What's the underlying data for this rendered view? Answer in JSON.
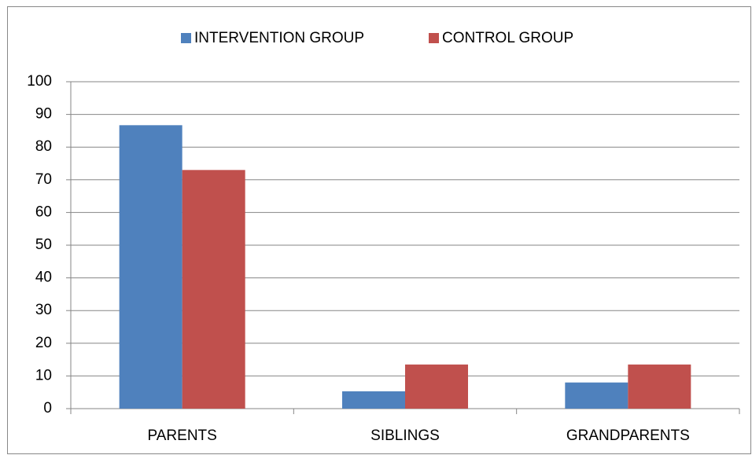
{
  "chart_data": {
    "type": "bar",
    "categories": [
      "PARENTS",
      "SIBLINGS",
      "GRANDPARENTS"
    ],
    "series": [
      {
        "name": "INTERVENTION GROUP",
        "color": "#4f81bd",
        "values": [
          86.7,
          5.3,
          8
        ]
      },
      {
        "name": "CONTROL GROUP",
        "color": "#c0504d",
        "values": [
          73,
          13.5,
          13.5
        ]
      }
    ],
    "ylim": [
      0,
      100
    ],
    "yticks": [
      0,
      10,
      20,
      30,
      40,
      50,
      60,
      70,
      80,
      90,
      100
    ],
    "grid": true,
    "legend": "top"
  }
}
